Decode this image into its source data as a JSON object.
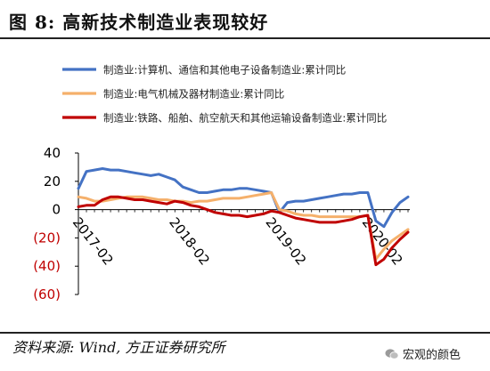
{
  "figure": {
    "title": "图 8: 高新技术制造业表现较好",
    "source": "资料来源: Wind, 方正证券研究所",
    "watermark": "宏观的颜色"
  },
  "chart_data": {
    "type": "line",
    "title": "",
    "xlabel": "",
    "ylabel": "",
    "ylim": [
      -60,
      40
    ],
    "yticks": [
      40,
      20,
      0,
      -20,
      -40,
      -60
    ],
    "ytick_labels": [
      "40",
      "20",
      "0",
      "(20)",
      "(40)",
      "(60)"
    ],
    "ytick_colors": [
      "#000000",
      "#000000",
      "#000000",
      "#c00000",
      "#c00000",
      "#c00000"
    ],
    "xtick_labels": [
      "2017-02",
      "2018-02",
      "2019-02",
      "2020-02"
    ],
    "xtick_index": [
      1,
      13,
      25,
      37
    ],
    "grid": false,
    "legend_position": "top",
    "x": [
      "2017-01",
      "2017-02",
      "2017-03",
      "2017-04",
      "2017-05",
      "2017-06",
      "2017-07",
      "2017-08",
      "2017-09",
      "2017-10",
      "2017-11",
      "2017-12",
      "2018-01",
      "2018-02",
      "2018-03",
      "2018-04",
      "2018-05",
      "2018-06",
      "2018-07",
      "2018-08",
      "2018-09",
      "2018-10",
      "2018-11",
      "2018-12",
      "2019-01",
      "2019-02",
      "2019-03",
      "2019-04",
      "2019-05",
      "2019-06",
      "2019-07",
      "2019-08",
      "2019-09",
      "2019-10",
      "2019-11",
      "2019-12",
      "2020-01",
      "2020-02",
      "2020-03",
      "2020-04",
      "2020-05",
      "2020-06"
    ],
    "series": [
      {
        "name": "制造业:计算机、通信和其他电子设备制造业:累计同比",
        "color": "#4472c4",
        "values": [
          15,
          27,
          28,
          29,
          28,
          28,
          27,
          26,
          25,
          24,
          25,
          23,
          21,
          16,
          14,
          12,
          12,
          13,
          14,
          14,
          15,
          15,
          14,
          13,
          12,
          -2,
          5,
          6,
          6,
          7,
          8,
          9,
          10,
          11,
          11,
          12,
          12,
          -8,
          -12,
          -2,
          5,
          9
        ]
      },
      {
        "name": "制造业:电气机械及器材制造业:累计同比",
        "color": "#f5b06b",
        "values": [
          9,
          8,
          6,
          6,
          7,
          8,
          9,
          9,
          9,
          8,
          7,
          7,
          6,
          6,
          5,
          6,
          6,
          7,
          8,
          8,
          8,
          9,
          10,
          11,
          12,
          0,
          -1,
          -3,
          -4,
          -4,
          -5,
          -5,
          -5,
          -5,
          -5,
          -5,
          -4,
          -35,
          -28,
          -22,
          -18,
          -14
        ]
      },
      {
        "name": "制造业:铁路、船舶、航空航天和其他运输设备制造业:累计同比",
        "color": "#c00000",
        "values": [
          2,
          3,
          3,
          7,
          9,
          9,
          8,
          7,
          7,
          6,
          5,
          4,
          6,
          5,
          3,
          2,
          0,
          -2,
          -3,
          -4,
          -4,
          -5,
          -4,
          -3,
          -1,
          -2,
          -4,
          -6,
          -7,
          -8,
          -9,
          -9,
          -9,
          -8,
          -7,
          -5,
          -4,
          -39,
          -35,
          -27,
          -21,
          -16
        ]
      }
    ]
  }
}
